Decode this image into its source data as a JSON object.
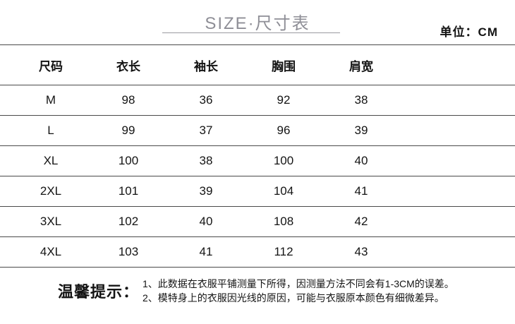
{
  "header": {
    "title": "SIZE·尺寸表",
    "unit_label": "单位：CM"
  },
  "table": {
    "columns": [
      "尺码",
      "衣长",
      "袖长",
      "胸围",
      "肩宽"
    ],
    "rows": [
      [
        "M",
        "98",
        "36",
        "92",
        "38"
      ],
      [
        "L",
        "99",
        "37",
        "96",
        "39"
      ],
      [
        "XL",
        "100",
        "38",
        "100",
        "40"
      ],
      [
        "2XL",
        "101",
        "39",
        "104",
        "41"
      ],
      [
        "3XL",
        "102",
        "40",
        "108",
        "42"
      ],
      [
        "4XL",
        "103",
        "41",
        "112",
        "43"
      ]
    ]
  },
  "tips": {
    "label": "温馨提示：",
    "items": [
      "1、此数据在衣服平铺测量下所得，因测量方法不同会有1-3CM的误差。",
      "2、模特身上的衣服因光线的原因，可能与衣服原本颜色有细微差异。"
    ]
  },
  "colors": {
    "title-gray": "#8e8e96",
    "underline-gray": "#9a9aa0",
    "line-dark": "#4a4a4a",
    "text-black": "#141414"
  }
}
